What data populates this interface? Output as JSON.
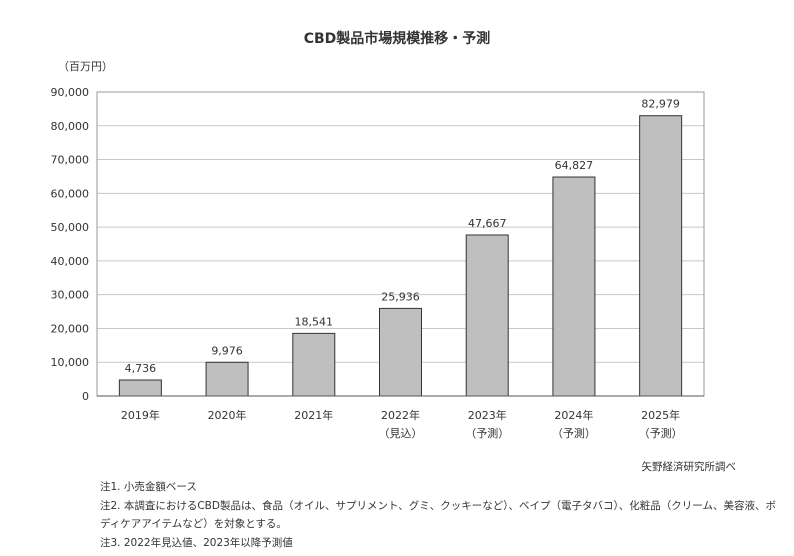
{
  "chart_data": {
    "type": "bar",
    "title": "CBD製品市場規模推移・予測",
    "ylabel": "（百万円）",
    "categories": [
      {
        "year": "2019年",
        "sub": ""
      },
      {
        "year": "2020年",
        "sub": ""
      },
      {
        "year": "2021年",
        "sub": ""
      },
      {
        "year": "2022年",
        "sub": "（見込）"
      },
      {
        "year": "2023年",
        "sub": "（予測）"
      },
      {
        "year": "2024年",
        "sub": "（予測）"
      },
      {
        "year": "2025年",
        "sub": "（予測）"
      }
    ],
    "values": [
      4736,
      9976,
      18541,
      25936,
      47667,
      64827,
      82979
    ],
    "value_labels": [
      "4,736",
      "9,976",
      "18,541",
      "25,936",
      "47,667",
      "64,827",
      "82,979"
    ],
    "ylim": [
      0,
      90000
    ],
    "yticks": [
      0,
      10000,
      20000,
      30000,
      40000,
      50000,
      60000,
      70000,
      80000,
      90000
    ],
    "ytick_labels": [
      "0",
      "10,000",
      "20,000",
      "30,000",
      "40,000",
      "50,000",
      "60,000",
      "70,000",
      "80,000",
      "90,000"
    ],
    "grid": true,
    "bar_color": "#bfbfbf",
    "bar_edge_color": "#333333",
    "grid_color": "#c8c8c8"
  },
  "source": "矢野経済研究所調べ",
  "notes": [
    "注1. 小売金額ベース",
    "注2. 本調査におけるCBD製品は、食品（オイル、サプリメント、グミ、クッキーなど）、ベイプ（電子タバコ）、化粧品（クリーム、美容液、ボ",
    "ディケアアイテムなど）を対象とする。",
    "注3. 2022年見込値、2023年以降予測値"
  ]
}
